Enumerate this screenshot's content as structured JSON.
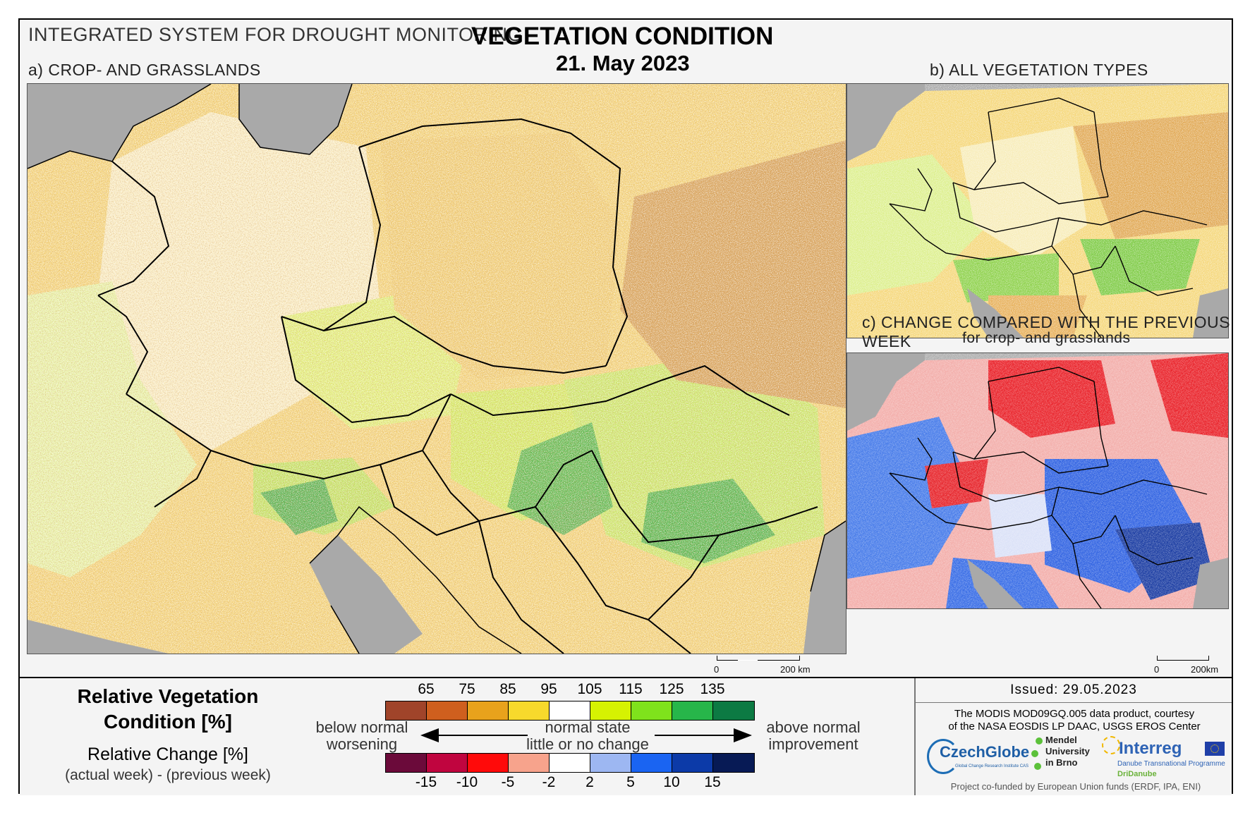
{
  "header": {
    "system_title": "INTEGRATED SYSTEM FOR DROUGHT MONITORING",
    "main_title": "VEGETATION CONDITION",
    "date": "21. May 2023"
  },
  "panels": {
    "a_label": "a) CROP- AND GRASSLANDS",
    "b_label": "b) ALL VEGETATION TYPES",
    "c_label_line1": "c) CHANGE COMPARED WITH THE PREVIOUS WEEK",
    "c_label_line2": "for crop- and grasslands"
  },
  "scales": {
    "a_zero": "0",
    "a_dist": "200 km",
    "c_zero": "0",
    "c_dist": "200km"
  },
  "legend": {
    "rvc_title_line1": "Relative Vegetation",
    "rvc_title_line2": "Condition [%]",
    "rc_title": "Relative Change [%]",
    "rc_sub": "(actual week) - (previous week)",
    "rvc_ticks": [
      "65",
      "75",
      "85",
      "95",
      "105",
      "115",
      "125",
      "135"
    ],
    "rvc_colors": [
      "#a0442a",
      "#cf5f1e",
      "#e8a21c",
      "#f7d92c",
      "#ffffff",
      "#d6f202",
      "#7fe21c",
      "#27b64a",
      "#0c7a43"
    ],
    "rc_ticks": [
      "-15",
      "-10",
      "-5",
      "-2",
      "2",
      "5",
      "10",
      "15"
    ],
    "rc_colors": [
      "#6b0a3a",
      "#c0053f",
      "#ff0a0a",
      "#f7a38c",
      "#ffffff",
      "#9db7f2",
      "#1a64f2",
      "#0c3aa8",
      "#071a55"
    ],
    "below_line1": "below normal",
    "below_line2": "worsening",
    "normal_line1": "normal state",
    "normal_line2": "little or no change",
    "above_line1": "above normal",
    "above_line2": "improvement"
  },
  "info": {
    "issued": "Issued: 29.05.2023",
    "credit_line1": "The MODIS MOD09GQ.005 data product, courtesy",
    "credit_line2": "of the NASA EOSDIS LP DAAC, USGS EROS Center",
    "logo_czechglobe": "CzechGlobe",
    "logo_czechglobe_sub": "Global Change Research Institute CAS",
    "logo_mendel_1": "Mendel",
    "logo_mendel_2": "University",
    "logo_mendel_3": "in Brno",
    "logo_interreg": "Interreg",
    "logo_interreg_sub": "Danube Transnational Programme",
    "logo_dridanube": "DriDanube",
    "funded": "Project co-funded by European Union funds (ERDF, IPA, ENI)"
  }
}
